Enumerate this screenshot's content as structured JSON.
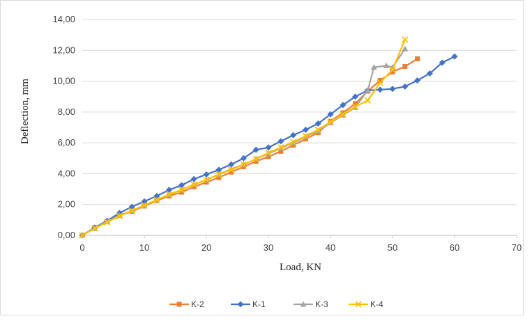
{
  "chart_data": {
    "type": "line",
    "xlabel": "Load, KN",
    "ylabel": "Deflection, mm",
    "xlim": [
      0,
      70
    ],
    "ylim": [
      0,
      14
    ],
    "x_ticks": [
      "0",
      "10",
      "20",
      "30",
      "40",
      "50",
      "60",
      "70"
    ],
    "y_ticks": [
      "0,00",
      "2,00",
      "4,00",
      "6,00",
      "8,00",
      "10,00",
      "12,00",
      "14,00"
    ],
    "grid": "horizontal",
    "legend_position": "bottom",
    "series": [
      {
        "name": "K-2",
        "color": "#ED7D31",
        "marker": "square",
        "points": [
          [
            0,
            0
          ],
          [
            2,
            0.5
          ],
          [
            4,
            0.9
          ],
          [
            6,
            1.3
          ],
          [
            8,
            1.55
          ],
          [
            10,
            1.9
          ],
          [
            12,
            2.25
          ],
          [
            14,
            2.55
          ],
          [
            16,
            2.8
          ],
          [
            18,
            3.15
          ],
          [
            20,
            3.45
          ],
          [
            22,
            3.75
          ],
          [
            24,
            4.1
          ],
          [
            26,
            4.45
          ],
          [
            28,
            4.8
          ],
          [
            30,
            5.1
          ],
          [
            32,
            5.45
          ],
          [
            34,
            5.85
          ],
          [
            36,
            6.25
          ],
          [
            38,
            6.65
          ],
          [
            40,
            7.4
          ],
          [
            42,
            7.95
          ],
          [
            44,
            8.55
          ],
          [
            46,
            9.35
          ],
          [
            48,
            10.05
          ],
          [
            50,
            10.6
          ],
          [
            52,
            10.95
          ],
          [
            54,
            11.45
          ]
        ]
      },
      {
        "name": "K-1",
        "color": "#4472C4",
        "marker": "diamond",
        "points": [
          [
            0,
            0
          ],
          [
            2,
            0.5
          ],
          [
            4,
            0.95
          ],
          [
            6,
            1.45
          ],
          [
            8,
            1.85
          ],
          [
            10,
            2.2
          ],
          [
            12,
            2.55
          ],
          [
            14,
            2.95
          ],
          [
            16,
            3.25
          ],
          [
            18,
            3.65
          ],
          [
            20,
            3.95
          ],
          [
            22,
            4.25
          ],
          [
            24,
            4.6
          ],
          [
            26,
            5.0
          ],
          [
            28,
            5.55
          ],
          [
            30,
            5.7
          ],
          [
            32,
            6.1
          ],
          [
            34,
            6.5
          ],
          [
            36,
            6.85
          ],
          [
            38,
            7.25
          ],
          [
            40,
            7.85
          ],
          [
            42,
            8.45
          ],
          [
            44,
            9.0
          ],
          [
            46,
            9.4
          ],
          [
            48,
            9.45
          ],
          [
            50,
            9.5
          ],
          [
            52,
            9.65
          ],
          [
            54,
            10.05
          ],
          [
            56,
            10.5
          ],
          [
            58,
            11.2
          ],
          [
            60,
            11.6
          ]
        ]
      },
      {
        "name": "K-3",
        "color": "#A5A5A5",
        "marker": "triangle",
        "points": [
          [
            0,
            0
          ],
          [
            2,
            0.45
          ],
          [
            4,
            0.9
          ],
          [
            6,
            1.3
          ],
          [
            8,
            1.6
          ],
          [
            10,
            1.95
          ],
          [
            12,
            2.3
          ],
          [
            14,
            2.65
          ],
          [
            16,
            2.95
          ],
          [
            18,
            3.3
          ],
          [
            20,
            3.6
          ],
          [
            22,
            3.95
          ],
          [
            24,
            4.3
          ],
          [
            26,
            4.6
          ],
          [
            28,
            4.95
          ],
          [
            30,
            5.3
          ],
          [
            32,
            5.65
          ],
          [
            34,
            6.0
          ],
          [
            36,
            6.4
          ],
          [
            38,
            6.75
          ],
          [
            40,
            7.3
          ],
          [
            42,
            7.8
          ],
          [
            44,
            8.3
          ],
          [
            46,
            9.4
          ],
          [
            47,
            10.9
          ],
          [
            49,
            11.0
          ],
          [
            50,
            10.9
          ],
          [
            52,
            12.1
          ]
        ]
      },
      {
        "name": "K-4",
        "color": "#FFC000",
        "marker": "x",
        "points": [
          [
            0,
            0
          ],
          [
            2,
            0.45
          ],
          [
            4,
            0.85
          ],
          [
            6,
            1.25
          ],
          [
            8,
            1.6
          ],
          [
            10,
            1.95
          ],
          [
            12,
            2.3
          ],
          [
            14,
            2.65
          ],
          [
            16,
            2.95
          ],
          [
            18,
            3.3
          ],
          [
            20,
            3.6
          ],
          [
            22,
            3.95
          ],
          [
            24,
            4.25
          ],
          [
            26,
            4.6
          ],
          [
            28,
            4.95
          ],
          [
            30,
            5.35
          ],
          [
            32,
            5.7
          ],
          [
            34,
            6.05
          ],
          [
            36,
            6.45
          ],
          [
            38,
            6.85
          ],
          [
            40,
            7.35
          ],
          [
            42,
            7.85
          ],
          [
            44,
            8.35
          ],
          [
            46,
            8.75
          ],
          [
            48,
            9.9
          ],
          [
            50,
            10.75
          ],
          [
            52,
            12.7
          ]
        ]
      }
    ]
  }
}
